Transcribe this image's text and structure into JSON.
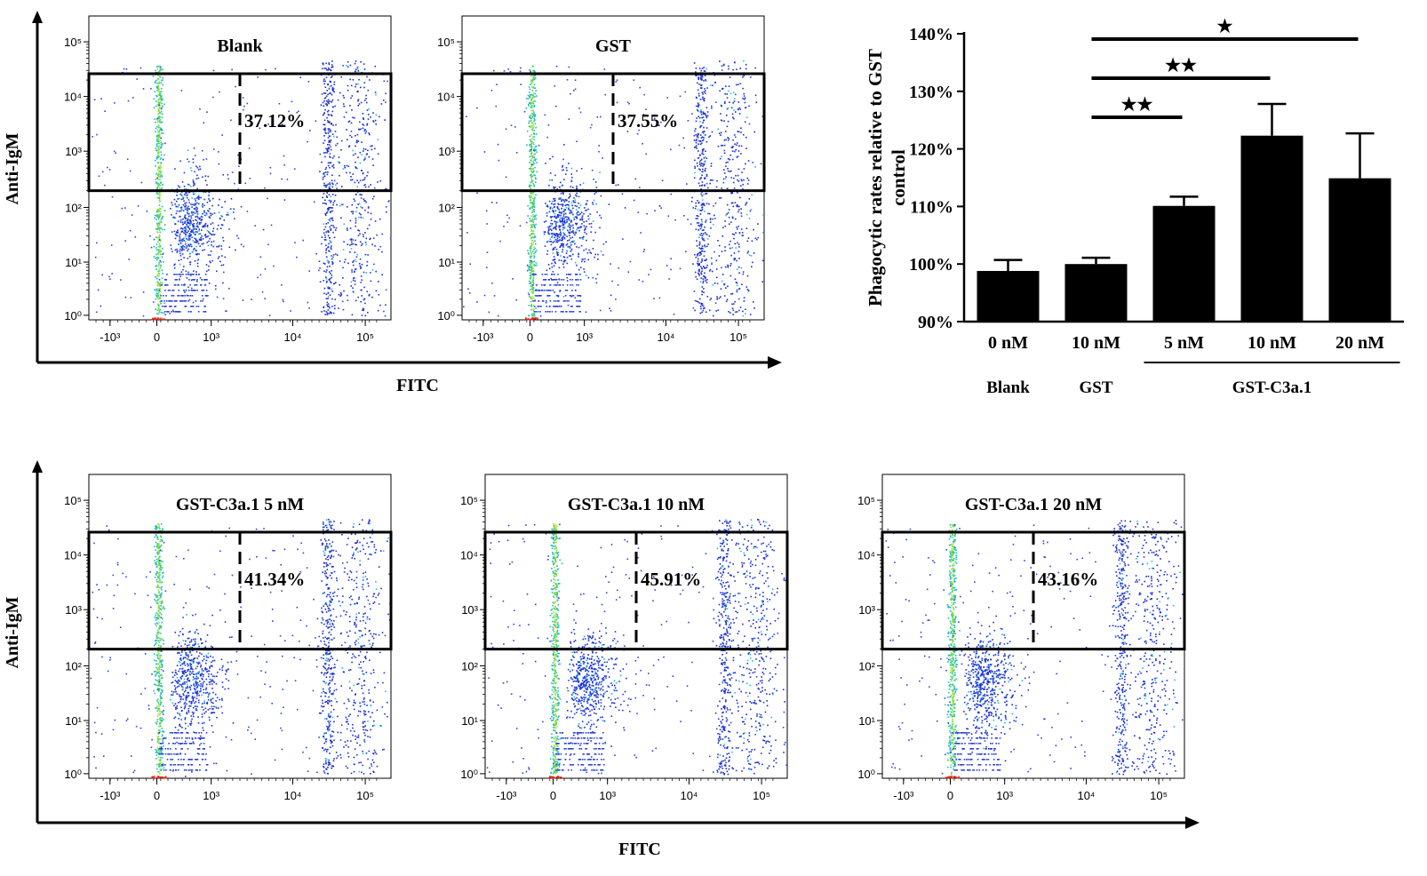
{
  "chart_data": [
    {
      "type": "scatter",
      "subtype": "flow-cytometry-density-plot",
      "figure_row": "top",
      "xlabel": "FITC",
      "ylabel": "Anti-IgM",
      "x_ticks": [
        "-10³",
        "0",
        "10³",
        "10⁴",
        "10⁵"
      ],
      "y_ticks": [
        "10⁰",
        "10¹",
        "10²",
        "10³",
        "10⁴",
        "10⁵"
      ],
      "panels": [
        {
          "title": "Blank",
          "gate_percent": "37.12%",
          "gate_value": 37.12
        },
        {
          "title": "GST",
          "gate_percent": "37.55%",
          "gate_value": 37.55
        }
      ]
    },
    {
      "type": "scatter",
      "subtype": "flow-cytometry-density-plot",
      "figure_row": "bottom",
      "xlabel": "FITC",
      "ylabel": "Anti-IgM",
      "x_ticks": [
        "-10³",
        "0",
        "10³",
        "10⁴",
        "10⁵"
      ],
      "y_ticks": [
        "10⁰",
        "10¹",
        "10²",
        "10³",
        "10⁴",
        "10⁵"
      ],
      "panels": [
        {
          "title": "GST-C3a.1 5 nM",
          "gate_percent": "41.34%",
          "gate_value": 41.34
        },
        {
          "title": "GST-C3a.1 10 nM",
          "gate_percent": "45.91%",
          "gate_value": 45.91
        },
        {
          "title": "GST-C3a.1 20 nM",
          "gate_percent": "43.16%",
          "gate_value": 43.16
        }
      ]
    },
    {
      "type": "bar",
      "ylabel": "Phagocytic rates relative to GST control",
      "ylim": [
        90,
        140
      ],
      "y_ticks": [
        "90%",
        "100%",
        "110%",
        "120%",
        "130%",
        "140%"
      ],
      "y_tick_values": [
        90,
        100,
        110,
        120,
        130,
        140
      ],
      "categories": [
        "0 nM",
        "10 nM",
        "5 nM",
        "10 nM",
        "20 nM"
      ],
      "values": [
        98.8,
        100.0,
        110.1,
        122.3,
        114.9
      ],
      "errors": [
        1.9,
        1.1,
        1.6,
        5.5,
        7.8
      ],
      "groups": [
        {
          "label": "Blank",
          "members": [
            0
          ]
        },
        {
          "label": "GST",
          "members": [
            1
          ]
        },
        {
          "label": "GST-C3a.1",
          "members": [
            2,
            3,
            4
          ]
        }
      ],
      "significance": [
        {
          "from": 1,
          "to": 2,
          "stars": "★★"
        },
        {
          "from": 1,
          "to": 3,
          "stars": "★★"
        },
        {
          "from": 1,
          "to": 4,
          "stars": "★"
        }
      ]
    }
  ]
}
